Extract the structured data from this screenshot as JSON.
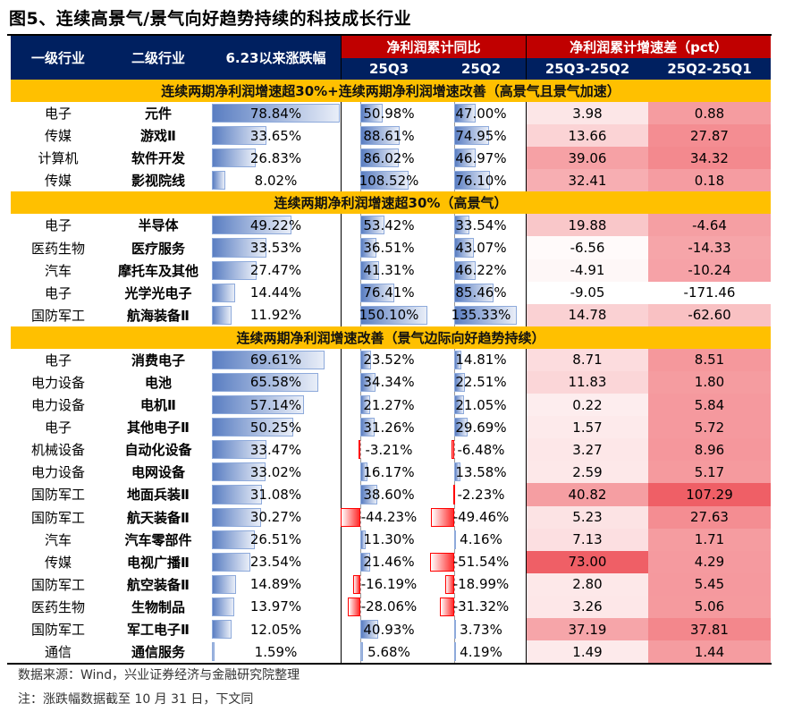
{
  "title": "图5、连续高景气/景气向好趋势持续的科技成长行业",
  "header": {
    "col1": "一级行业",
    "col2": "二级行业",
    "col3": "6.23以来涨跌幅",
    "group1": "净利润累计同比",
    "group2": "净利润累计增速差（pct）",
    "q3": "25Q3",
    "q2": "25Q2",
    "d1": "25Q3-25Q2",
    "d2": "25Q2-25Q1"
  },
  "colors": {
    "header": "#002060",
    "group_header": "#c00000",
    "section": "#ffc000",
    "bar_positive": "#4472c4",
    "bar_negative": "#ff0000",
    "heat_max": "#ef5f66"
  },
  "sections": [
    {
      "label": "连续两期净利润增速超30%+连续两期净利润增速改善（高景气且景气加速）",
      "rows": [
        [
          "电子",
          "元件",
          "78.84%",
          "50.98%",
          "47.00%",
          "3.98",
          "0.88"
        ],
        [
          "传媒",
          "游戏Ⅱ",
          "33.65%",
          "88.61%",
          "74.95%",
          "13.66",
          "27.87"
        ],
        [
          "计算机",
          "软件开发",
          "26.83%",
          "86.02%",
          "46.97%",
          "39.06",
          "34.32"
        ],
        [
          "传媒",
          "影视院线",
          "8.02%",
          "108.52%",
          "76.10%",
          "32.41",
          "0.18"
        ]
      ]
    },
    {
      "label": "连续两期净利润增速超30%（高景气）",
      "rows": [
        [
          "电子",
          "半导体",
          "49.22%",
          "53.42%",
          "33.54%",
          "19.88",
          "-4.64"
        ],
        [
          "医药生物",
          "医疗服务",
          "33.53%",
          "36.51%",
          "43.07%",
          "-6.56",
          "-14.33"
        ],
        [
          "汽车",
          "摩托车及其他",
          "27.47%",
          "41.31%",
          "46.22%",
          "-4.91",
          "-10.24"
        ],
        [
          "电子",
          "光学光电子",
          "14.44%",
          "76.41%",
          "85.46%",
          "-9.05",
          "-171.46"
        ],
        [
          "国防军工",
          "航海装备Ⅱ",
          "11.92%",
          "150.10%",
          "135.33%",
          "14.78",
          "-62.60"
        ]
      ]
    },
    {
      "label": "连续两期净利润增速改善（景气边际向好趋势持续）",
      "rows": [
        [
          "电子",
          "消费电子",
          "69.61%",
          "23.52%",
          "14.81%",
          "8.71",
          "8.51"
        ],
        [
          "电力设备",
          "电池",
          "65.58%",
          "34.34%",
          "22.51%",
          "11.83",
          "1.80"
        ],
        [
          "电力设备",
          "电机Ⅱ",
          "57.14%",
          "21.27%",
          "21.05%",
          "0.22",
          "5.84"
        ],
        [
          "电子",
          "其他电子Ⅱ",
          "50.25%",
          "31.26%",
          "29.69%",
          "1.57",
          "5.72"
        ],
        [
          "机械设备",
          "自动化设备",
          "33.47%",
          "-3.21%",
          "-6.48%",
          "3.27",
          "8.96"
        ],
        [
          "电力设备",
          "电网设备",
          "33.02%",
          "16.17%",
          "13.58%",
          "2.59",
          "5.17"
        ],
        [
          "国防军工",
          "地面兵装Ⅱ",
          "31.08%",
          "38.60%",
          "-2.23%",
          "40.82",
          "107.29"
        ],
        [
          "国防军工",
          "航天装备Ⅱ",
          "30.27%",
          "-44.23%",
          "-49.46%",
          "5.23",
          "27.63"
        ],
        [
          "汽车",
          "汽车零部件",
          "26.51%",
          "11.30%",
          "4.16%",
          "7.13",
          "1.71"
        ],
        [
          "传媒",
          "电视广播Ⅱ",
          "23.54%",
          "21.46%",
          "-51.54%",
          "73.00",
          "4.29"
        ],
        [
          "国防军工",
          "航空装备Ⅱ",
          "14.89%",
          "-16.19%",
          "-18.99%",
          "2.80",
          "5.45"
        ],
        [
          "医药生物",
          "生物制品",
          "13.97%",
          "-28.06%",
          "-31.32%",
          "3.26",
          "5.06"
        ],
        [
          "国防军工",
          "军工电子Ⅱ",
          "12.05%",
          "40.93%",
          "3.73%",
          "37.19",
          "37.81"
        ],
        [
          "通信",
          "通信服务",
          "1.59%",
          "5.68%",
          "4.19%",
          "1.49",
          "1.44"
        ]
      ]
    }
  ],
  "footer": {
    "source": "数据来源：Wind，兴业证券经济与金融研究院整理",
    "note": "注：涨跌幅数据截至 10 月 31 日，下文同"
  }
}
